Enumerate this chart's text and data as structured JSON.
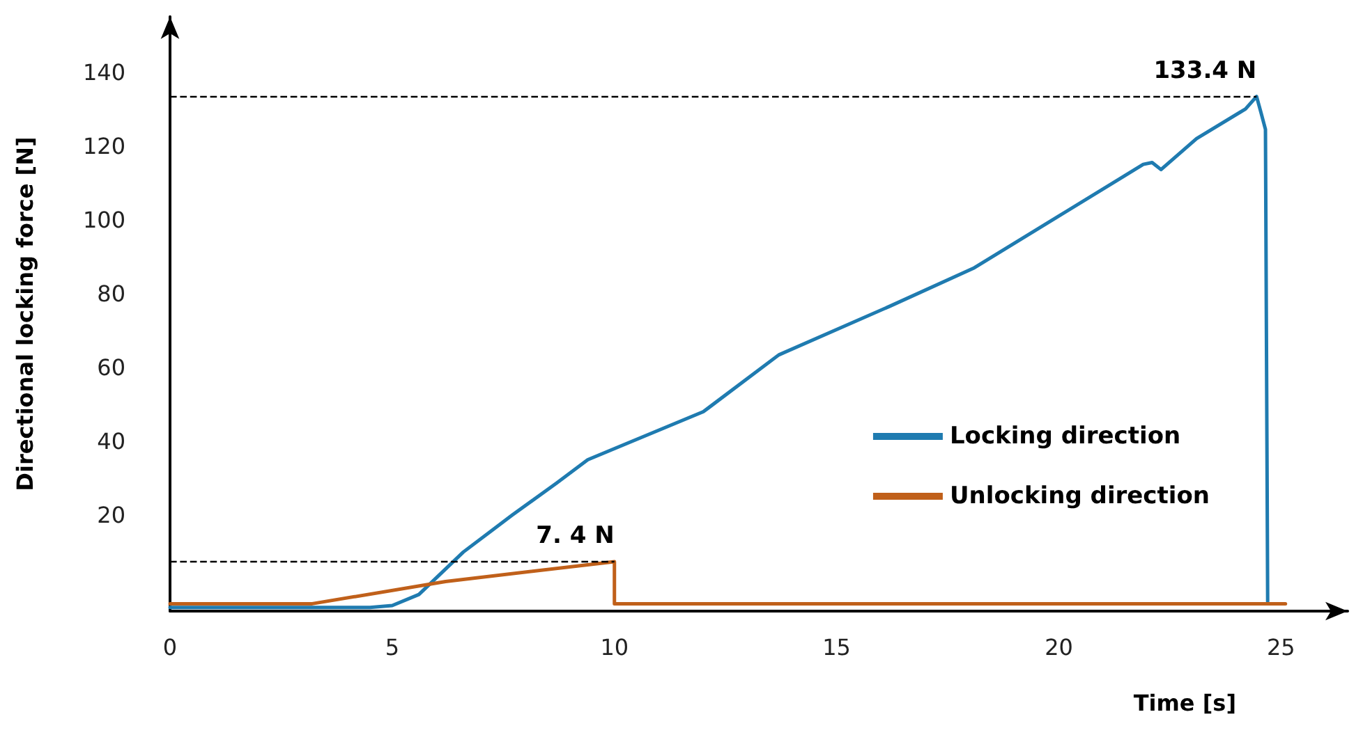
{
  "chart_data": {
    "type": "line",
    "xlabel": "Time [s]",
    "ylabel": "Directional locking force [N]",
    "xlim": [
      0,
      26.5
    ],
    "xticks": [
      0,
      5,
      10,
      15,
      20,
      25
    ],
    "ylim": [
      -6,
      155
    ],
    "yticks": [
      20,
      40,
      60,
      80,
      100,
      120,
      140
    ],
    "grid": false,
    "legend": "right",
    "marker": "none",
    "line_style": "solid",
    "series": [
      {
        "name": "Locking direction",
        "color": "#1f7bb0",
        "x": [
          0,
          4.5,
          5.0,
          5.6,
          6.6,
          7.7,
          8.7,
          9.4,
          10.2,
          12.0,
          13.7,
          16.2,
          18.1,
          20.0,
          21.9,
          22.1,
          22.3,
          23.1,
          24.2,
          24.45,
          24.55,
          24.65,
          24.7
        ],
        "values": [
          -5,
          -5,
          -4.5,
          -1.5,
          10,
          20,
          28.7,
          35,
          39,
          48,
          63.4,
          76.6,
          87,
          101,
          115,
          115.5,
          113.6,
          122,
          130,
          133.4,
          129,
          124.5,
          -3.4
        ]
      },
      {
        "name": "Unlocking direction",
        "color": "#c0601a",
        "x": [
          0,
          3.2,
          6.2,
          10.0,
          10.0,
          25.1
        ],
        "values": [
          -4,
          -4,
          2,
          7.4,
          -4,
          -4
        ]
      }
    ],
    "ref_lines": [
      {
        "axis": "y",
        "value": 133.4,
        "label": "133.4 N",
        "line_style": "dashed",
        "color": "#000000"
      },
      {
        "axis": "y",
        "value": 7.4,
        "label": "7. 4 N",
        "line_style": "dashed",
        "color": "#000000"
      }
    ]
  }
}
